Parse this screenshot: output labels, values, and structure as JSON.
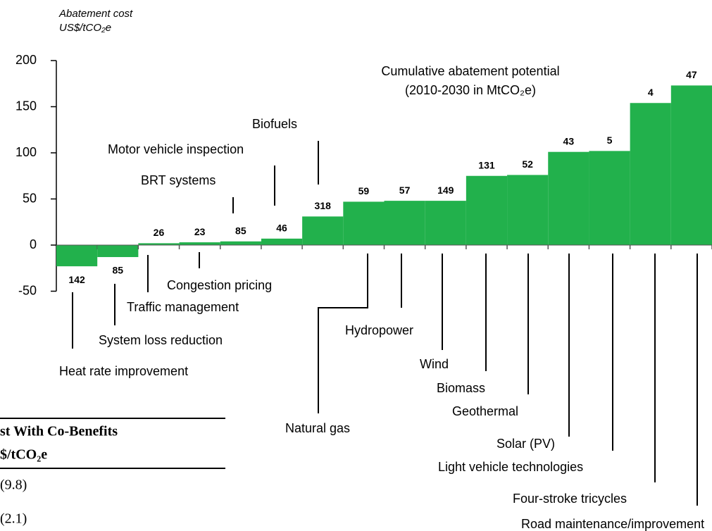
{
  "chart_data": {
    "type": "bar",
    "y_label": [
      "Abatement cost",
      "US$/tCO₂e"
    ],
    "annotation": [
      "Cumulative abatement potential",
      "(2010-2030 in MtCO₂e)"
    ],
    "categories": [
      "Heat rate improvement",
      "System loss reduction",
      "Traffic management",
      "Congestion pricing",
      "BRT systems",
      "Motor vehicle inspection",
      "Biofuels",
      "Natural gas",
      "Hydropower",
      "Wind",
      "Biomass",
      "Geothermal",
      "Solar (PV)",
      "Light vehicle technologies",
      "Four-stroke tricycles",
      "Road maintenance/improvement"
    ],
    "values": [
      -23,
      -13,
      2,
      3,
      4,
      7,
      31,
      47,
      48,
      48,
      75,
      76,
      101,
      102,
      154,
      173
    ],
    "potential": [
      142,
      85,
      26,
      23,
      85,
      46,
      318,
      59,
      57,
      149,
      131,
      52,
      43,
      5,
      4,
      47
    ],
    "color": "#22b14c",
    "ylim": [
      -50,
      200
    ],
    "yticks": [
      -50,
      0,
      50,
      100,
      150,
      200
    ]
  },
  "table": {
    "header": [
      "st With Co-Benefits",
      "$/tCO₂e"
    ],
    "rows": [
      "(9.8)",
      "(2.1)"
    ]
  }
}
